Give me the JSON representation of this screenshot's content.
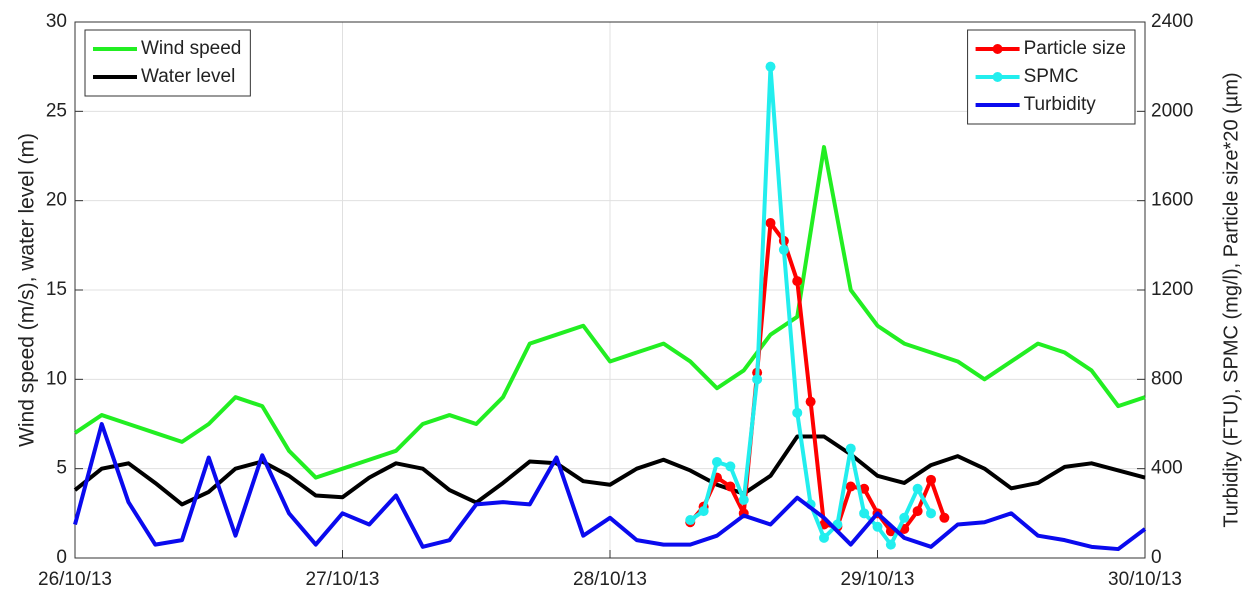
{
  "chart_data": {
    "type": "line",
    "ylabel": "Wind speed (m/s), water level (m)",
    "y2label": "Turbidity (FTU), SPMC (mg/l), Particle size*20 (µm)",
    "xlim": [
      0,
      4
    ],
    "xticks": [
      {
        "value": 0,
        "label": "26/10/13"
      },
      {
        "value": 1,
        "label": "27/10/13"
      },
      {
        "value": 2,
        "label": "28/10/13"
      },
      {
        "value": 3,
        "label": "29/10/13"
      },
      {
        "value": 4,
        "label": "30/10/13"
      }
    ],
    "ylim": [
      0,
      30
    ],
    "yticks": [
      0,
      5,
      10,
      15,
      20,
      25,
      30
    ],
    "y2lim": [
      0,
      2400
    ],
    "y2ticks": [
      0,
      400,
      800,
      1200,
      1600,
      2000,
      2400
    ],
    "grid": true,
    "legend": "upper left",
    "legend2": "upper right",
    "series": [
      {
        "name": "Wind speed",
        "color": "#22ee22",
        "x": [
          0,
          0.1,
          0.2,
          0.3,
          0.4,
          0.5,
          0.6,
          0.7,
          0.8,
          0.9,
          1,
          1.1,
          1.2,
          1.3,
          1.4,
          1.5,
          1.6,
          1.7,
          1.8,
          1.9,
          2,
          2.1,
          2.2,
          2.3,
          2.4,
          2.5,
          2.6,
          2.7,
          2.8,
          2.9,
          3,
          3.1,
          3.2,
          3.3,
          3.4,
          3.5,
          3.6,
          3.7,
          3.8,
          3.9,
          4
        ],
        "values": [
          7,
          8,
          7.5,
          7,
          6.5,
          7.5,
          9,
          8.5,
          6,
          4.5,
          5,
          5.5,
          6,
          7.5,
          8,
          7.5,
          9,
          12,
          12.5,
          13,
          11,
          11.5,
          12,
          11,
          9.5,
          10.5,
          12.5,
          13.5,
          23,
          15,
          13,
          12,
          11.5,
          11,
          10,
          11,
          12,
          11.5,
          10.5,
          8.5,
          9
        ]
      },
      {
        "name": "Water level",
        "color": "#000000",
        "x": [
          0,
          0.1,
          0.2,
          0.3,
          0.4,
          0.5,
          0.6,
          0.7,
          0.8,
          0.9,
          1,
          1.1,
          1.2,
          1.3,
          1.4,
          1.5,
          1.6,
          1.7,
          1.8,
          1.9,
          2,
          2.1,
          2.2,
          2.3,
          2.4,
          2.5,
          2.6,
          2.7,
          2.8,
          2.9,
          3,
          3.1,
          3.2,
          3.3,
          3.4,
          3.5,
          3.6,
          3.7,
          3.8,
          3.9,
          4
        ],
        "values": [
          3.8,
          5,
          5.3,
          4.2,
          3,
          3.7,
          5,
          5.4,
          4.6,
          3.5,
          3.4,
          4.5,
          5.3,
          5,
          3.8,
          3.1,
          4.2,
          5.4,
          5.3,
          4.3,
          4.1,
          5,
          5.5,
          4.9,
          4.1,
          3.6,
          4.6,
          6.8,
          6.8,
          5.8,
          4.6,
          4.2,
          5.2,
          5.7,
          5,
          3.9,
          4.2,
          5.1,
          5.3,
          4.9,
          4.5
        ]
      },
      {
        "name": "Particle size",
        "color": "#ff0000",
        "axis": "y2",
        "marker": true,
        "x": [
          2.3,
          2.35,
          2.4,
          2.45,
          2.5,
          2.55,
          2.6,
          2.65,
          2.7,
          2.75,
          2.8,
          2.85,
          2.9,
          2.95,
          3,
          3.05,
          3.1,
          3.15,
          3.2,
          3.25
        ],
        "values": [
          160,
          230,
          360,
          320,
          200,
          830,
          1500,
          1420,
          1240,
          700,
          150,
          140,
          320,
          310,
          200,
          120,
          130,
          210,
          350,
          180
        ]
      },
      {
        "name": "SPMC",
        "color": "#22eeee",
        "axis": "y2",
        "marker": true,
        "x": [
          2.3,
          2.35,
          2.4,
          2.45,
          2.5,
          2.55,
          2.6,
          2.65,
          2.7,
          2.75,
          2.8,
          2.85,
          2.9,
          2.95,
          3,
          3.05,
          3.1,
          3.15,
          3.2
        ],
        "values": [
          170,
          210,
          430,
          410,
          260,
          800,
          2200,
          1380,
          650,
          240,
          90,
          150,
          490,
          200,
          140,
          60,
          180,
          310,
          200
        ]
      },
      {
        "name": "Turbidity",
        "color": "#0a0aee",
        "axis": "y2",
        "x": [
          0,
          0.1,
          0.2,
          0.3,
          0.4,
          0.5,
          0.6,
          0.7,
          0.8,
          0.9,
          1,
          1.1,
          1.2,
          1.3,
          1.4,
          1.5,
          1.6,
          1.7,
          1.8,
          1.9,
          2,
          2.1,
          2.2,
          2.3,
          2.4,
          2.5,
          2.6,
          2.7,
          2.8,
          2.9,
          3,
          3.1,
          3.2,
          3.3,
          3.4,
          3.5,
          3.6,
          3.7,
          3.8,
          3.9,
          4
        ],
        "values": [
          150,
          600,
          250,
          60,
          80,
          450,
          100,
          460,
          200,
          60,
          200,
          150,
          280,
          50,
          80,
          240,
          250,
          240,
          450,
          100,
          180,
          80,
          60,
          60,
          100,
          190,
          150,
          270,
          180,
          60,
          200,
          90,
          50,
          150,
          160,
          200,
          100,
          80,
          50,
          40,
          130
        ]
      }
    ]
  }
}
